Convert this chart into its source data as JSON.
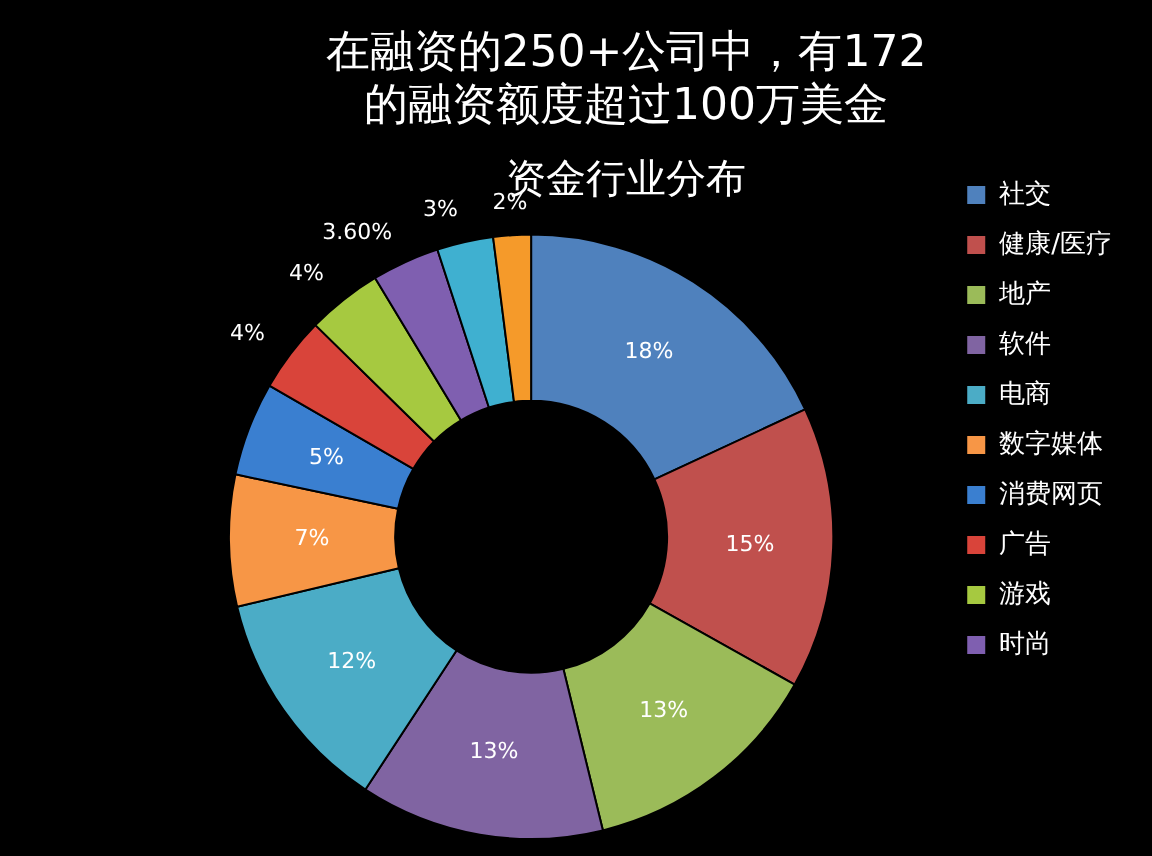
{
  "chart_data": {
    "type": "donut",
    "title": "在融资的250+公司中，有172\n的融资额度超过100万美金",
    "subtitle": "资金行业分布",
    "categories": [
      "社交",
      "健康/医疗",
      "地产",
      "软件",
      "电商",
      "数字媒体",
      "消费网页",
      "广告",
      "游戏",
      "时尚",
      null,
      null
    ],
    "values": [
      18,
      15,
      13,
      13,
      12,
      7,
      5,
      4,
      4,
      3.6,
      3,
      2
    ],
    "value_labels": [
      "18%",
      "15%",
      "13%",
      "13%",
      "12%",
      "7%",
      "5%",
      "4%",
      "4%",
      "3.60%",
      "3%",
      "2%"
    ],
    "colors": [
      "#4f81bd",
      "#c0504d",
      "#9bbb59",
      "#8064a2",
      "#4bacc6",
      "#f79646",
      "#3a7fd0",
      "#d9443a",
      "#a6c940",
      "#7f5fb0",
      "#3fb0d0",
      "#f59a2a"
    ],
    "legend": "right"
  }
}
